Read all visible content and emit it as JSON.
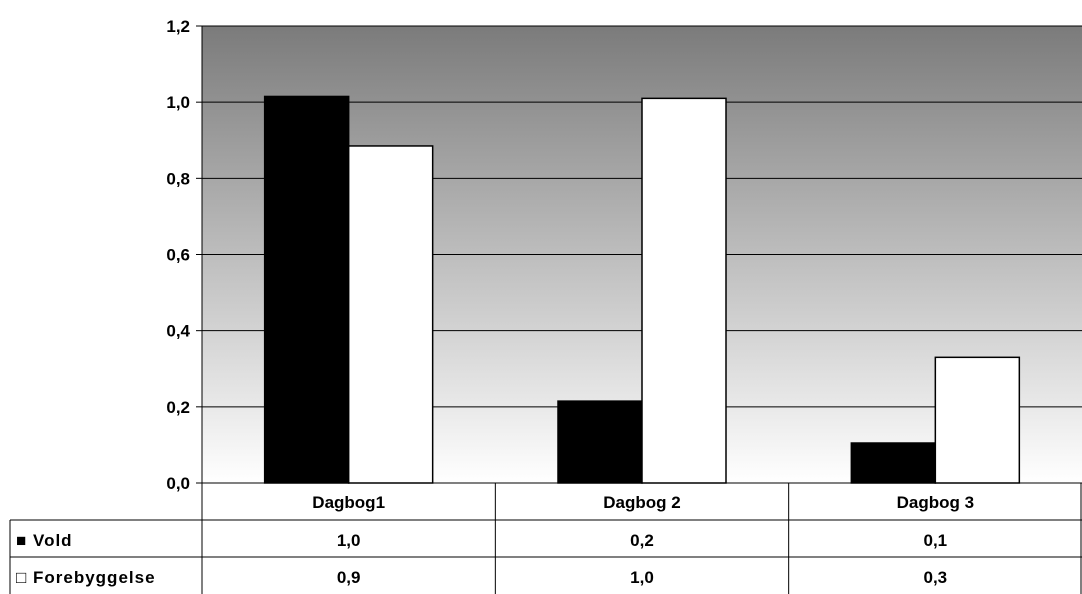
{
  "chart_data": {
    "type": "bar",
    "categories": [
      "Dagbog1",
      "Dagbog 2",
      "Dagbog 3"
    ],
    "series": [
      {
        "name": "Vold",
        "values": [
          1.0,
          0.2,
          0.1
        ],
        "bar_values": [
          1.015,
          0.215,
          0.105
        ],
        "color": "#000000",
        "marker": "■"
      },
      {
        "name": "Forebyggelse",
        "values": [
          0.9,
          1.0,
          0.3
        ],
        "bar_values": [
          0.885,
          1.01,
          0.33
        ],
        "color": "#ffffff",
        "marker": "□"
      }
    ],
    "table_values": [
      [
        "1,0",
        "0,2",
        "0,1"
      ],
      [
        "0,9",
        "1,0",
        "0,3"
      ]
    ],
    "y_ticks": [
      "0,0",
      "0,2",
      "0,4",
      "0,6",
      "0,8",
      "1,0",
      "1,2"
    ],
    "ylim": [
      0,
      1.2
    ],
    "grid": true,
    "legend": "data-table",
    "background": {
      "top": "#7b7b7b",
      "bottom": "#ffffff"
    }
  }
}
